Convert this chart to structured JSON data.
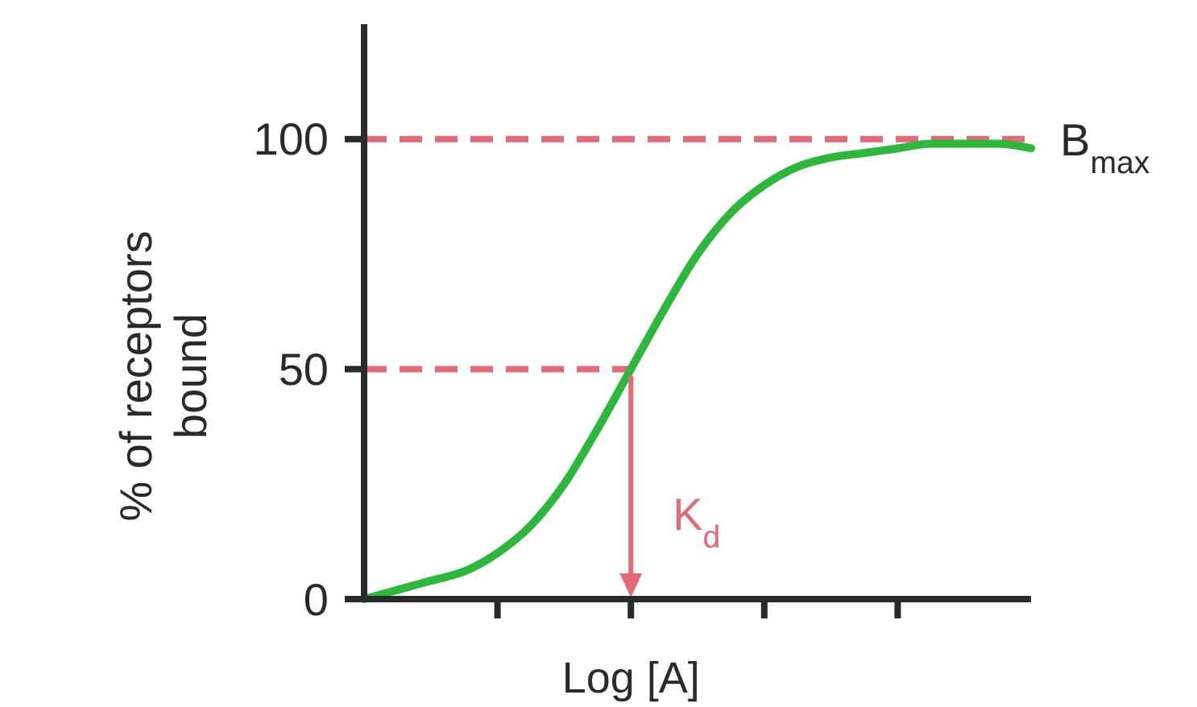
{
  "chart_data": {
    "type": "line",
    "xlabel": "Log [A]",
    "ylabel": "% of receptors\nbound",
    "categories": [
      null,
      null,
      null,
      null,
      null,
      null,
      null,
      null,
      null,
      null,
      null,
      null,
      null,
      null,
      null,
      null,
      null,
      null,
      null,
      null,
      null
    ],
    "series": [
      {
        "color": "#2db83d",
        "values": [
          0,
          2,
          4,
          6,
          10,
          16,
          25,
          37,
          50,
          63,
          75,
          84,
          90,
          94,
          96,
          97,
          98,
          99,
          99,
          99,
          98
        ]
      }
    ],
    "ylim": [
      0,
      125
    ],
    "yticks": [
      0,
      50,
      100
    ],
    "line_style": "solid",
    "ref_lines": [
      {
        "axis": "y",
        "value": 100,
        "label": "B$_{max}$",
        "color": "#e36b78",
        "line_style": "dashed"
      },
      {
        "axis": "y",
        "value": 50,
        "color": "#e36b78",
        "line_style": "dashed"
      }
    ],
    "annotations": [
      "K$_{d}$"
    ]
  }
}
